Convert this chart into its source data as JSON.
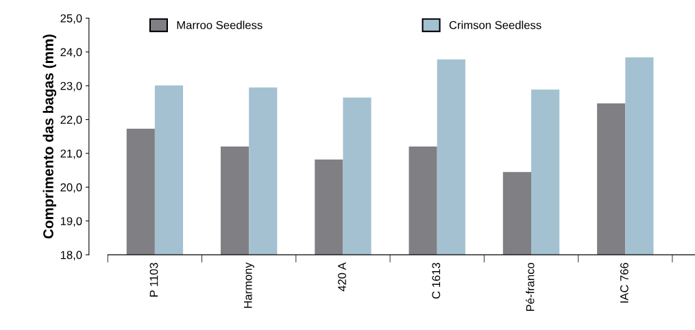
{
  "chart_data": {
    "type": "bar",
    "ylabel": "Comprimento das bagas (mm)",
    "categories": [
      "P 1103",
      "Harmony",
      "420 A",
      "C 1613",
      "Pé-franco",
      "IAC 766"
    ],
    "series": [
      {
        "name": "Marroo Seedless",
        "color": "#808084",
        "values": [
          21.73,
          21.2,
          20.82,
          21.2,
          20.45,
          22.48
        ]
      },
      {
        "name": "Crimson Seedless",
        "color": "#a3c1d1",
        "values": [
          23.01,
          22.95,
          22.65,
          23.78,
          22.89,
          23.84
        ]
      }
    ],
    "ylim": [
      18,
      25
    ],
    "yticks": [
      {
        "value": 18,
        "label": "18,0"
      },
      {
        "value": 19,
        "label": "19,0"
      },
      {
        "value": 20,
        "label": "20,0"
      },
      {
        "value": 21,
        "label": "21,0"
      },
      {
        "value": 22,
        "label": "22,0"
      },
      {
        "value": 23,
        "label": "23,0"
      },
      {
        "value": 24,
        "label": "24,0"
      },
      {
        "value": 25,
        "label": "25,0"
      }
    ],
    "grid": false,
    "legend": "top"
  }
}
